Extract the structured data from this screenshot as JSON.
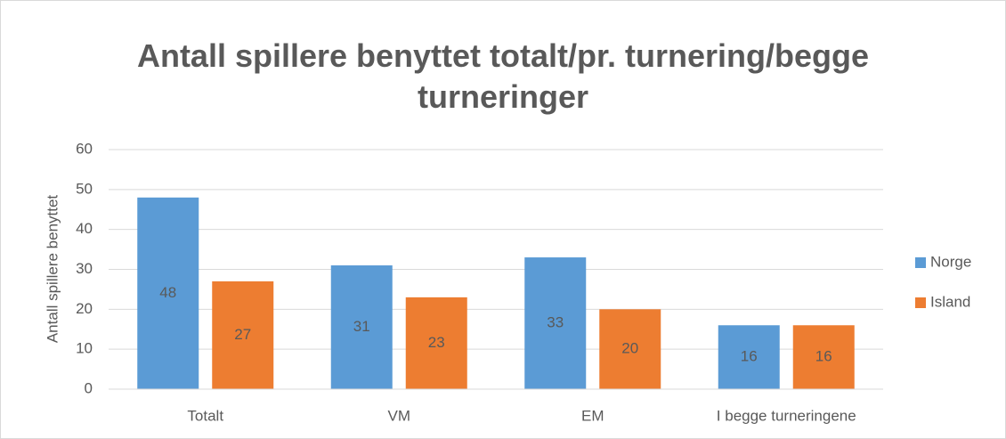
{
  "chart_data": {
    "type": "bar",
    "title": "Antall spillere benyttet totalt/pr. turnering/begge turneringer",
    "y_label": "Antall spillere benyttet",
    "categories": [
      "Totalt",
      "VM",
      "EM",
      "I begge turneringene"
    ],
    "series": [
      {
        "name": "Norge",
        "color": "#5b9bd5",
        "values": [
          48,
          31,
          33,
          16
        ]
      },
      {
        "name": "Island",
        "color": "#ed7d31",
        "values": [
          27,
          23,
          20,
          16
        ]
      }
    ],
    "ylim": [
      0,
      60
    ],
    "yticks": [
      0,
      10,
      20,
      30,
      40,
      50,
      60
    ],
    "grid": true,
    "legend": "right"
  }
}
